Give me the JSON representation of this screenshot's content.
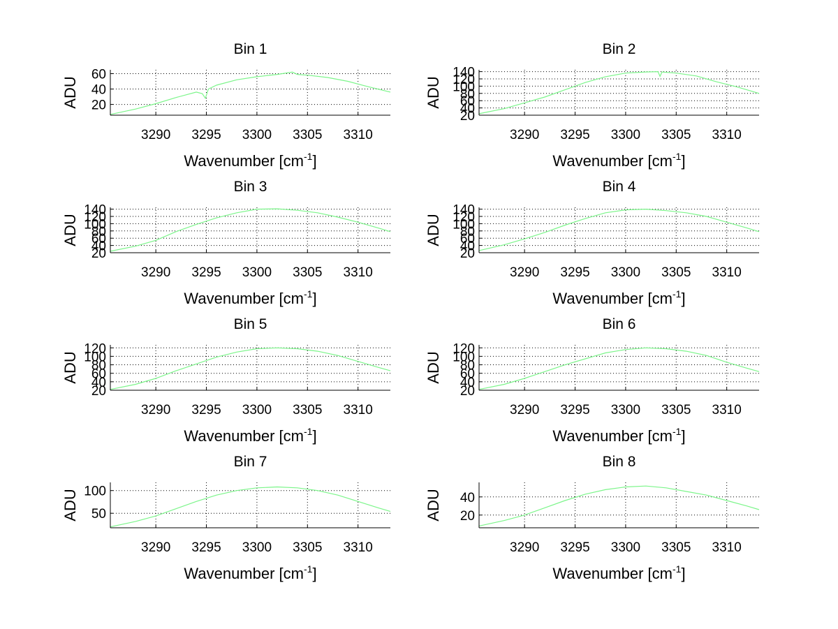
{
  "chart_data": [
    {
      "type": "line",
      "title": "Bin 1",
      "xlabel": "Wavenumber [cm",
      "xlabel_sup": "-1",
      "xlabel_suffix": "]",
      "ylabel": "ADU",
      "xlim": [
        3285.5,
        3313.2
      ],
      "ylim": [
        6,
        65
      ],
      "xticks": [
        3290,
        3295,
        3300,
        3305,
        3310
      ],
      "yticks": [
        20,
        40,
        60
      ],
      "color": "#7cf58a",
      "series": [
        {
          "name": "Bin 1",
          "x": [
            3285.5,
            3288,
            3290,
            3292,
            3294,
            3294.6,
            3294.9,
            3295.2,
            3296,
            3298,
            3300,
            3302,
            3303.5,
            3304,
            3305,
            3307,
            3309,
            3311,
            3313.2
          ],
          "y": [
            7,
            14,
            21,
            29,
            36,
            34,
            28,
            40,
            45,
            52,
            56,
            59,
            62,
            59,
            58,
            55,
            50,
            43,
            36
          ]
        }
      ]
    },
    {
      "type": "line",
      "title": "Bin 2",
      "xlabel": "Wavenumber [cm",
      "xlabel_sup": "-1",
      "xlabel_suffix": "]",
      "ylabel": "ADU",
      "xlim": [
        3285.5,
        3313.2
      ],
      "ylim": [
        20,
        145
      ],
      "xticks": [
        3290,
        3295,
        3300,
        3305,
        3310
      ],
      "yticks": [
        20,
        40,
        60,
        80,
        100,
        120,
        140
      ],
      "color": "#7cf58a",
      "series": [
        {
          "name": "Bin 2",
          "x": [
            3285.5,
            3288,
            3290,
            3292,
            3294,
            3296,
            3298,
            3300,
            3302,
            3303.2,
            3303.4,
            3303.6,
            3305,
            3307,
            3309,
            3311,
            3313.2
          ],
          "y": [
            24,
            38,
            54,
            70,
            90,
            110,
            126,
            136,
            139,
            140,
            127,
            139,
            136,
            128,
            112,
            98,
            80
          ]
        }
      ]
    },
    {
      "type": "line",
      "title": "Bin 3",
      "xlabel": "Wavenumber [cm",
      "xlabel_sup": "-1",
      "xlabel_suffix": "]",
      "ylabel": "ADU",
      "xlim": [
        3285.5,
        3313.2
      ],
      "ylim": [
        20,
        145
      ],
      "xticks": [
        3290,
        3295,
        3300,
        3305,
        3310
      ],
      "yticks": [
        20,
        40,
        60,
        80,
        100,
        120,
        140
      ],
      "color": "#7cf58a",
      "series": [
        {
          "name": "Bin 3",
          "x": [
            3285.5,
            3288,
            3290,
            3292,
            3294,
            3296,
            3298,
            3300,
            3302,
            3304,
            3306,
            3308,
            3310,
            3312,
            3313.2
          ],
          "y": [
            24,
            38,
            54,
            78,
            98,
            116,
            130,
            140,
            141,
            137,
            130,
            118,
            104,
            88,
            78
          ]
        }
      ]
    },
    {
      "type": "line",
      "title": "Bin 4",
      "xlabel": "Wavenumber [cm",
      "xlabel_sup": "-1",
      "xlabel_suffix": "]",
      "ylabel": "ADU",
      "xlim": [
        3285.5,
        3313.2
      ],
      "ylim": [
        20,
        145
      ],
      "xticks": [
        3290,
        3295,
        3300,
        3305,
        3310
      ],
      "yticks": [
        20,
        40,
        60,
        80,
        100,
        120,
        140
      ],
      "color": "#7cf58a",
      "series": [
        {
          "name": "Bin 4",
          "x": [
            3285.5,
            3288,
            3290,
            3292,
            3294,
            3296,
            3298,
            3300,
            3302,
            3304,
            3306,
            3308,
            3310,
            3312,
            3313.2
          ],
          "y": [
            26,
            42,
            58,
            76,
            96,
            114,
            130,
            138,
            140,
            136,
            130,
            120,
            104,
            88,
            78
          ]
        }
      ]
    },
    {
      "type": "line",
      "title": "Bin 5",
      "xlabel": "Wavenumber [cm",
      "xlabel_sup": "-1",
      "xlabel_suffix": "]",
      "ylabel": "ADU",
      "xlim": [
        3285.5,
        3313.2
      ],
      "ylim": [
        20,
        127
      ],
      "xticks": [
        3290,
        3295,
        3300,
        3305,
        3310
      ],
      "yticks": [
        20,
        40,
        60,
        80,
        100,
        120
      ],
      "color": "#7cf58a",
      "series": [
        {
          "name": "Bin 5",
          "x": [
            3285.5,
            3288,
            3290,
            3292,
            3294,
            3296,
            3298,
            3300,
            3302,
            3304,
            3306,
            3308,
            3310,
            3312,
            3313.2
          ],
          "y": [
            22,
            34,
            48,
            66,
            82,
            98,
            110,
            118,
            120,
            118,
            112,
            102,
            88,
            74,
            66
          ]
        }
      ]
    },
    {
      "type": "line",
      "title": "Bin 6",
      "xlabel": "Wavenumber [cm",
      "xlabel_sup": "-1",
      "xlabel_suffix": "]",
      "ylabel": "ADU",
      "xlim": [
        3285.5,
        3313.2
      ],
      "ylim": [
        20,
        127
      ],
      "xticks": [
        3290,
        3295,
        3300,
        3305,
        3310
      ],
      "yticks": [
        20,
        40,
        60,
        80,
        100,
        120
      ],
      "color": "#7cf58a",
      "series": [
        {
          "name": "Bin 6",
          "x": [
            3285.5,
            3288,
            3290,
            3292,
            3294,
            3296,
            3298,
            3300,
            3302,
            3304,
            3306,
            3308,
            3310,
            3312,
            3313.2
          ],
          "y": [
            22,
            34,
            48,
            64,
            80,
            94,
            108,
            116,
            120,
            118,
            112,
            102,
            86,
            72,
            64
          ]
        }
      ]
    },
    {
      "type": "line",
      "title": "Bin 7",
      "xlabel": "Wavenumber [cm",
      "xlabel_sup": "-1",
      "xlabel_suffix": "]",
      "ylabel": "ADU",
      "xlim": [
        3285.5,
        3313.2
      ],
      "ylim": [
        18,
        118
      ],
      "xticks": [
        3290,
        3295,
        3300,
        3305,
        3310
      ],
      "yticks": [
        50,
        100
      ],
      "color": "#7cf58a",
      "series": [
        {
          "name": "Bin 7",
          "x": [
            3285.5,
            3288,
            3290,
            3292,
            3294,
            3296,
            3298,
            3300,
            3302,
            3304,
            3306,
            3308,
            3310,
            3312,
            3313.2
          ],
          "y": [
            20,
            32,
            44,
            60,
            76,
            90,
            100,
            106,
            108,
            106,
            100,
            90,
            76,
            62,
            54
          ]
        }
      ]
    },
    {
      "type": "line",
      "title": "Bin 8",
      "xlabel": "Wavenumber [cm",
      "xlabel_sup": "-1",
      "xlabel_suffix": "]",
      "ylabel": "ADU",
      "xlim": [
        3285.5,
        3313.2
      ],
      "ylim": [
        6,
        56
      ],
      "xticks": [
        3290,
        3295,
        3300,
        3305,
        3310
      ],
      "yticks": [
        20,
        40
      ],
      "color": "#7cf58a",
      "series": [
        {
          "name": "Bin 8",
          "x": [
            3285.5,
            3288,
            3290,
            3292,
            3294,
            3296,
            3298,
            3300,
            3302,
            3304,
            3306,
            3308,
            3310,
            3312,
            3313.2
          ],
          "y": [
            8,
            14,
            20,
            28,
            36,
            43,
            48,
            51,
            52,
            50,
            46,
            42,
            36,
            30,
            26
          ]
        }
      ]
    }
  ]
}
